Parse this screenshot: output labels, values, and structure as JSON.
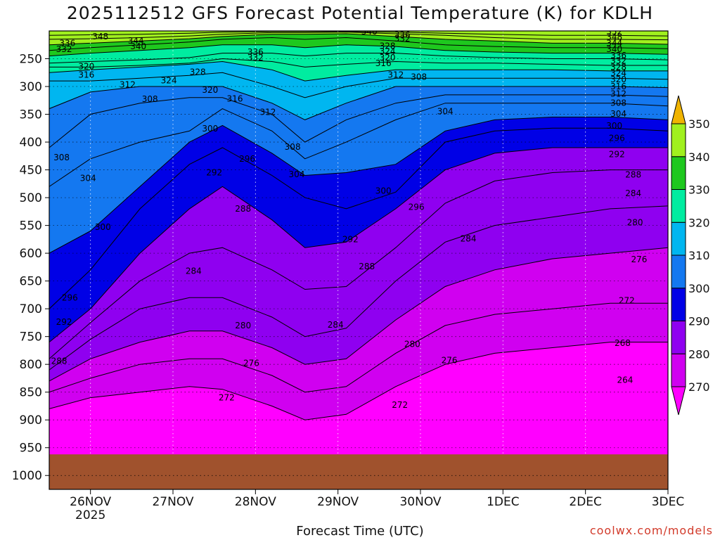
{
  "title": "2025112512 GFS Forecast Potential Temperature (K) for KDLH",
  "credit": "coolwx.com/models",
  "chart_data": {
    "type": "heatmap",
    "title": "2025112512 GFS Forecast Potential Temperature (K) for KDLH",
    "xlabel": "Forecast Time (UTC)",
    "ylabel": "",
    "x_ticks": [
      {
        "label": "26NOV",
        "sublabel": "2025",
        "day": 1
      },
      {
        "label": "27NOV",
        "day": 2
      },
      {
        "label": "28NOV",
        "day": 3
      },
      {
        "label": "29NOV",
        "day": 4
      },
      {
        "label": "30NOV",
        "day": 5
      },
      {
        "label": "1DEC",
        "day": 6
      },
      {
        "label": "2DEC",
        "day": 7
      },
      {
        "label": "3DEC",
        "day": 8
      }
    ],
    "x_range_days": [
      0.5,
      8.0
    ],
    "y_ticks": [
      250,
      300,
      350,
      400,
      450,
      500,
      550,
      600,
      650,
      700,
      750,
      800,
      850,
      900,
      950,
      1000
    ],
    "y_range_hpa": [
      200,
      1025
    ],
    "surface_pressure_hpa": 962,
    "colorbar": {
      "levels": [
        270,
        280,
        290,
        300,
        310,
        320,
        330,
        340,
        350
      ],
      "colors": [
        "#ff00ff",
        "#d000f0",
        "#8f00f0",
        "#0000e6",
        "#1478f0",
        "#00b6f0",
        "#00eca0",
        "#1ec81e",
        "#a0f01e",
        "#f0f000",
        "#f0b400"
      ],
      "extend": "both"
    },
    "contour_interval": 4,
    "isentropes": [
      {
        "theta": 272,
        "pressure": [
          880,
          860,
          850,
          840,
          845,
          875,
          900,
          890,
          840,
          800,
          780,
          770,
          760,
          760
        ]
      },
      {
        "theta": 276,
        "pressure": [
          850,
          825,
          800,
          790,
          790,
          820,
          850,
          840,
          780,
          730,
          710,
          700,
          690,
          690
        ]
      },
      {
        "theta": 280,
        "pressure": [
          830,
          790,
          760,
          740,
          740,
          770,
          800,
          790,
          720,
          660,
          630,
          610,
          600,
          590
        ]
      },
      {
        "theta": 284,
        "pressure": [
          810,
          755,
          700,
          680,
          680,
          715,
          750,
          735,
          650,
          580,
          550,
          535,
          520,
          515
        ]
      },
      {
        "theta": 288,
        "pressure": [
          790,
          725,
          650,
          600,
          590,
          630,
          665,
          660,
          590,
          510,
          470,
          455,
          450,
          450
        ]
      },
      {
        "theta": 292,
        "pressure": [
          760,
          700,
          600,
          520,
          480,
          540,
          590,
          580,
          520,
          450,
          420,
          410,
          410,
          410
        ]
      },
      {
        "theta": 296,
        "pressure": [
          700,
          630,
          520,
          440,
          410,
          460,
          500,
          520,
          490,
          400,
          380,
          375,
          375,
          380
        ]
      },
      {
        "theta": 300,
        "pressure": [
          600,
          560,
          480,
          400,
          370,
          420,
          460,
          455,
          440,
          380,
          360,
          355,
          355,
          360
        ]
      },
      {
        "theta": 304,
        "pressure": [
          480,
          430,
          400,
          380,
          340,
          380,
          430,
          400,
          360,
          330,
          330,
          330,
          330,
          335
        ]
      },
      {
        "theta": 308,
        "pressure": [
          410,
          350,
          330,
          320,
          320,
          350,
          400,
          360,
          330,
          315,
          315,
          315,
          315,
          318
        ]
      },
      {
        "theta": 312,
        "pressure": [
          340,
          310,
          300,
          300,
          300,
          330,
          360,
          330,
          300,
          300,
          300,
          300,
          300,
          302
        ]
      },
      {
        "theta": 316,
        "pressure": [
          290,
          290,
          285,
          280,
          275,
          300,
          320,
          300,
          285,
          285,
          285,
          285,
          285,
          287
        ]
      },
      {
        "theta": 320,
        "pressure": [
          275,
          270,
          265,
          260,
          255,
          270,
          290,
          280,
          270,
          270,
          270,
          270,
          272,
          272
        ]
      },
      {
        "theta": 324,
        "pressure": [
          265,
          265,
          262,
          258,
          250,
          255,
          265,
          260,
          255,
          258,
          258,
          260,
          262,
          262
        ]
      },
      {
        "theta": 328,
        "pressure": [
          258,
          255,
          252,
          248,
          240,
          240,
          245,
          240,
          240,
          245,
          248,
          250,
          250,
          252
        ]
      },
      {
        "theta": 332,
        "pressure": [
          245,
          240,
          235,
          230,
          225,
          225,
          230,
          225,
          228,
          235,
          238,
          240,
          240,
          242
        ]
      },
      {
        "theta": 336,
        "pressure": [
          235,
          230,
          225,
          220,
          215,
          212,
          215,
          212,
          218,
          225,
          228,
          230,
          230,
          232
        ]
      },
      {
        "theta": 340,
        "pressure": [
          225,
          222,
          218,
          214,
          210,
          206,
          206,
          205,
          210,
          215,
          218,
          222,
          222,
          224
        ]
      },
      {
        "theta": 344,
        "pressure": [
          215,
          214,
          212,
          209,
          206,
          203,
          203,
          202,
          205,
          208,
          212,
          215,
          215,
          216
        ]
      },
      {
        "theta": 348,
        "pressure": [
          208,
          207,
          206,
          204,
          202,
          201,
          201,
          201,
          202,
          204,
          206,
          208,
          208,
          209
        ]
      }
    ],
    "isentrope_x_days": [
      0.5,
      1.0,
      1.6,
      2.2,
      2.6,
      3.2,
      3.6,
      4.1,
      4.7,
      5.3,
      5.9,
      6.6,
      7.3,
      8.0
    ],
    "contour_labels": [
      {
        "text": "348",
        "day": 1.12,
        "p": 210
      },
      {
        "text": "344",
        "day": 1.55,
        "p": 218
      },
      {
        "text": "340",
        "day": 1.58,
        "p": 228
      },
      {
        "text": "336",
        "day": 0.72,
        "p": 222
      },
      {
        "text": "332",
        "day": 0.68,
        "p": 233
      },
      {
        "text": "340",
        "day": 4.38,
        "p": 201
      },
      {
        "text": "336",
        "day": 4.78,
        "p": 207
      },
      {
        "text": "332",
        "day": 4.78,
        "p": 214
      },
      {
        "text": "352",
        "day": 7.35,
        "p": 201
      },
      {
        "text": "348",
        "day": 7.35,
        "p": 211
      },
      {
        "text": "344",
        "day": 7.35,
        "p": 222
      },
      {
        "text": "340",
        "day": 7.35,
        "p": 233
      },
      {
        "text": "336",
        "day": 3.0,
        "p": 238
      },
      {
        "text": "332",
        "day": 3.0,
        "p": 248
      },
      {
        "text": "328",
        "day": 4.6,
        "p": 227
      },
      {
        "text": "324",
        "day": 4.6,
        "p": 237
      },
      {
        "text": "320",
        "day": 4.6,
        "p": 248
      },
      {
        "text": "316",
        "day": 4.55,
        "p": 258
      },
      {
        "text": "312",
        "day": 4.7,
        "p": 279
      },
      {
        "text": "308",
        "day": 4.98,
        "p": 283
      },
      {
        "text": "336",
        "day": 7.4,
        "p": 244
      },
      {
        "text": "332",
        "day": 7.4,
        "p": 254
      },
      {
        "text": "328",
        "day": 7.4,
        "p": 265
      },
      {
        "text": "324",
        "day": 7.4,
        "p": 276
      },
      {
        "text": "320",
        "day": 7.4,
        "p": 287
      },
      {
        "text": "316",
        "day": 7.4,
        "p": 300
      },
      {
        "text": "312",
        "day": 7.4,
        "p": 313
      },
      {
        "text": "308",
        "day": 7.4,
        "p": 330
      },
      {
        "text": "304",
        "day": 7.4,
        "p": 349
      },
      {
        "text": "300",
        "day": 7.35,
        "p": 371
      },
      {
        "text": "296",
        "day": 7.38,
        "p": 393
      },
      {
        "text": "292",
        "day": 7.38,
        "p": 422
      },
      {
        "text": "288",
        "day": 7.58,
        "p": 459
      },
      {
        "text": "284",
        "day": 7.58,
        "p": 492
      },
      {
        "text": "280",
        "day": 7.6,
        "p": 545
      },
      {
        "text": "276",
        "day": 7.65,
        "p": 611
      },
      {
        "text": "272",
        "day": 7.5,
        "p": 685
      },
      {
        "text": "268",
        "day": 7.45,
        "p": 762
      },
      {
        "text": "264",
        "day": 7.48,
        "p": 828
      },
      {
        "text": "320",
        "day": 0.95,
        "p": 264
      },
      {
        "text": "316",
        "day": 0.95,
        "p": 279
      },
      {
        "text": "328",
        "day": 2.3,
        "p": 274
      },
      {
        "text": "324",
        "day": 1.95,
        "p": 289
      },
      {
        "text": "320",
        "day": 2.45,
        "p": 306
      },
      {
        "text": "316",
        "day": 2.75,
        "p": 322
      },
      {
        "text": "312",
        "day": 1.45,
        "p": 297
      },
      {
        "text": "308",
        "day": 1.72,
        "p": 323
      },
      {
        "text": "312",
        "day": 3.15,
        "p": 346
      },
      {
        "text": "308",
        "day": 3.45,
        "p": 409
      },
      {
        "text": "304",
        "day": 3.5,
        "p": 458
      },
      {
        "text": "304",
        "day": 5.3,
        "p": 345
      },
      {
        "text": "300",
        "day": 4.55,
        "p": 488
      },
      {
        "text": "296",
        "day": 4.95,
        "p": 517
      },
      {
        "text": "292",
        "day": 4.15,
        "p": 575
      },
      {
        "text": "288",
        "day": 4.35,
        "p": 624
      },
      {
        "text": "284",
        "day": 5.58,
        "p": 574
      },
      {
        "text": "308",
        "day": 0.65,
        "p": 428
      },
      {
        "text": "304",
        "day": 0.97,
        "p": 465
      },
      {
        "text": "300",
        "day": 1.15,
        "p": 553
      },
      {
        "text": "296",
        "day": 0.75,
        "p": 680
      },
      {
        "text": "292",
        "day": 0.68,
        "p": 724
      },
      {
        "text": "288",
        "day": 0.62,
        "p": 794
      },
      {
        "text": "300",
        "day": 2.45,
        "p": 376
      },
      {
        "text": "296",
        "day": 2.9,
        "p": 430
      },
      {
        "text": "292",
        "day": 2.5,
        "p": 455
      },
      {
        "text": "288",
        "day": 2.85,
        "p": 520
      },
      {
        "text": "284",
        "day": 2.25,
        "p": 632
      },
      {
        "text": "280",
        "day": 2.85,
        "p": 730
      },
      {
        "text": "276",
        "day": 2.95,
        "p": 798
      },
      {
        "text": "272",
        "day": 2.65,
        "p": 860
      },
      {
        "text": "284",
        "day": 3.97,
        "p": 729
      },
      {
        "text": "280",
        "day": 4.9,
        "p": 764
      },
      {
        "text": "276",
        "day": 5.35,
        "p": 793
      },
      {
        "text": "272",
        "day": 4.75,
        "p": 873
      }
    ]
  }
}
